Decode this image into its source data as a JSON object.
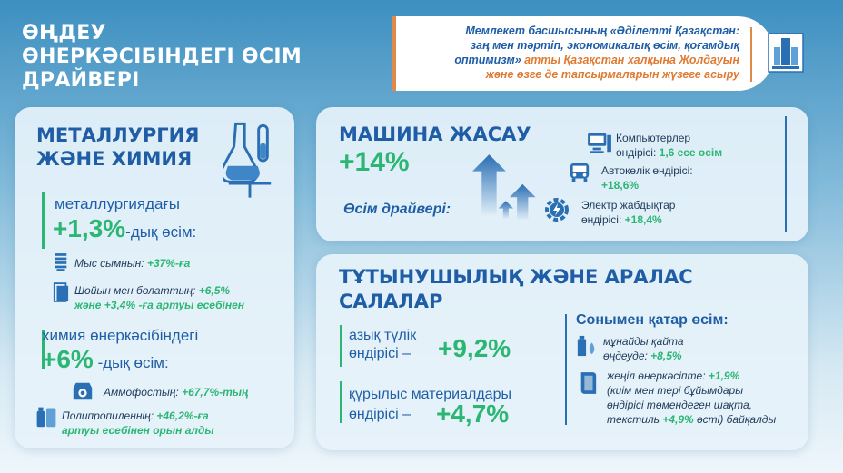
{
  "title": "ӨҢДЕУ\nӨНЕРКӘСІБІНДЕГІ ӨСІМ\nДРАЙВЕРІ",
  "quote": {
    "line1a": "Мемлекет басшысының «Әділетті Қазақстан:",
    "line2a": "заң мен тәртіп, экономикалық өсім, қоғамдық",
    "line3a": "оптимизм»",
    "line3b": " атты Қазақстан халқына Жолдауын",
    "line4a": "және өзге де тапсырмаларын жүзеге асыру"
  },
  "metallurgy": {
    "heading": "МЕТАЛЛУРГИЯ\nЖӘНЕ ХИМИЯ",
    "metal_label": "металлургиядағы",
    "metal_value": "+1,3%",
    "metal_suffix": "-дық өсім:",
    "copper_label": "Мыс сымнын:",
    "copper_value": "+37%-ға",
    "steel_line1_label": "Шойын мен болаттың:",
    "steel_line1_value": "+6,5%",
    "steel_line2_a": "және",
    "steel_line2_value": "+3,4%",
    "steel_line2_b": "-ға артуы есебінен",
    "chem_label": "химия өнеркәсібіндегі",
    "chem_value": "+6%",
    "chem_suffix": "-дық өсім:",
    "ammo_label": "Аммофостың:",
    "ammo_value": "+67,7%-тың",
    "poly_label": "Полипропиленнің:",
    "poly_value": "+46,2%-ға",
    "poly_line2": "артуы есебінен орын алды"
  },
  "machine": {
    "heading": "МАШИНА ЖАСАУ",
    "value": "+14%",
    "driver_label": "Өсім драйвері:",
    "computers_line1": "Компьютерлер",
    "computers_line2": "өндірісі:",
    "computers_value": "1,6 есе өсім",
    "auto_line1": "Автокөлік өндірісі:",
    "auto_value": "+18,6%",
    "electric_line1": "Электр жабдықтар",
    "electric_line2": "өндірісі:",
    "electric_value": "+18,4%"
  },
  "consumer": {
    "heading": "ТҰТЫНУШЫЛЫҚ ЖӘНЕ АРАЛАС\nСАЛАЛАР",
    "food_line1": "азық түлік",
    "food_line2": "өндірісі –",
    "food_value": "+9,2%",
    "build_line1": "құрылыс материалдары",
    "build_line2": "өндірісі –",
    "build_value": "+4,7%",
    "also_heading": "Сонымен қатар өсім:",
    "oil_line1": "мұнайды қайта",
    "oil_line2": "өңдеуде:",
    "oil_value": "+8,5%",
    "light_line1": "жеңіл өнеркәсіпте:",
    "light_value1": "+1,9%",
    "light_line2": "(киім мен тері бұйымдары",
    "light_line3": "өндірісі төмендеген шақта,",
    "light_line4a": "текстиль",
    "light_value2": "+4,9%",
    "light_line4b": "өсті) байқалды"
  },
  "colors": {
    "accent_green": "#2bb673",
    "brand_blue": "#1f5ea6",
    "quote_orange": "#e07a32"
  },
  "icons": [
    "flask-icon",
    "coil-icon",
    "steel-sheet-icon",
    "fertilizer-bag-icon",
    "polymer-icon",
    "computer-icon",
    "car-icon",
    "electric-gear-icon",
    "growth-arrows-icon",
    "oil-drop-icon",
    "fabric-icon",
    "building-logo-icon"
  ]
}
